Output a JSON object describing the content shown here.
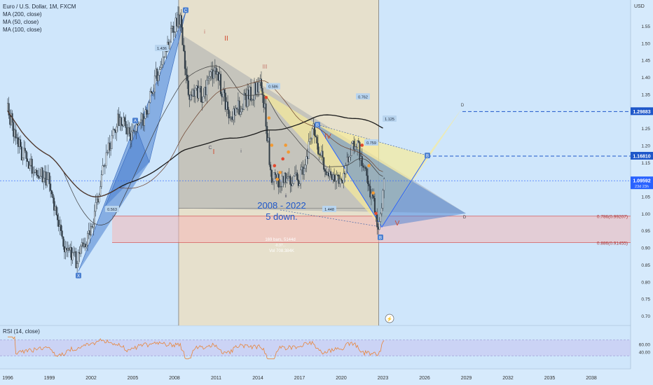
{
  "header": {
    "symbol": "Euro / U.S. Dollar, 1M, FXCM",
    "indicators": [
      "MA (200, close)",
      "MA (50, close)",
      "MA (100, close)"
    ]
  },
  "price_axis": {
    "currency": "USD",
    "ticks": [
      "1.55000",
      "1.50000",
      "1.45000",
      "1.40000",
      "1.35000",
      "1.30000",
      "1.25000",
      "1.20000",
      "1.15000",
      "1.10000",
      "1.05000",
      "1.00000",
      "0.95000",
      "0.90000",
      "0.85000",
      "0.80000",
      "0.75000",
      "0.70000"
    ],
    "badges": [
      {
        "value": "1.29883",
        "price": 1.29883,
        "color": "#1e57c9"
      },
      {
        "value": "1.16810",
        "price": 1.1681,
        "color": "#1e57c9"
      },
      {
        "value": "1.09592",
        "sub": "23d 23h",
        "price": 1.09592,
        "color": "#2962ff"
      }
    ],
    "fib_labels": [
      {
        "text": "0.786(0.99207)",
        "price": 0.99207
      },
      {
        "text": "0.886(0.91455)",
        "price": 0.91455
      }
    ]
  },
  "time_axis": {
    "labels": [
      "1996",
      "1999",
      "2002",
      "2005",
      "2008",
      "2011",
      "2014",
      "2017",
      "2020",
      "2023",
      "2026",
      "2029",
      "2032",
      "2035",
      "2038"
    ]
  },
  "pattern_labels": {
    "X": "X",
    "A": "A",
    "B": "B",
    "C": "C",
    "D": "D",
    "ratio_ab": "1.436",
    "ratio_low": "0.563",
    "ratio_mid": "0.586",
    "ratio_top": "0.762",
    "ratio_right": "1.125",
    "ratio_bc": "1.448",
    "ratio_b2": "0.759"
  },
  "wave_labels": {
    "I": "I",
    "II": "II",
    "III": "III",
    "IV": "IV",
    "V": "V",
    "i": "i",
    "ii": "ii",
    "c": "C"
  },
  "annotation": {
    "line1": "2008 - 2022",
    "line2": "5 down.",
    "bars": "169 bars, 5144d",
    "vol": "Vol 708.384K",
    "pct": "-0.37..."
  },
  "rsi": {
    "label": "RSI (14, close)",
    "ticks": [
      "60.00",
      "40.00"
    ]
  },
  "colors": {
    "background": "#cfe6fb",
    "down_candle": "#2f3b45",
    "fib_zone": "#f4b8b8",
    "harmonic_blue": "#4a7fd0",
    "harmonic_yellow": "#f6eb9a",
    "rsi_line": "#e8853a",
    "rsi_band": "#c9c2f0"
  }
}
